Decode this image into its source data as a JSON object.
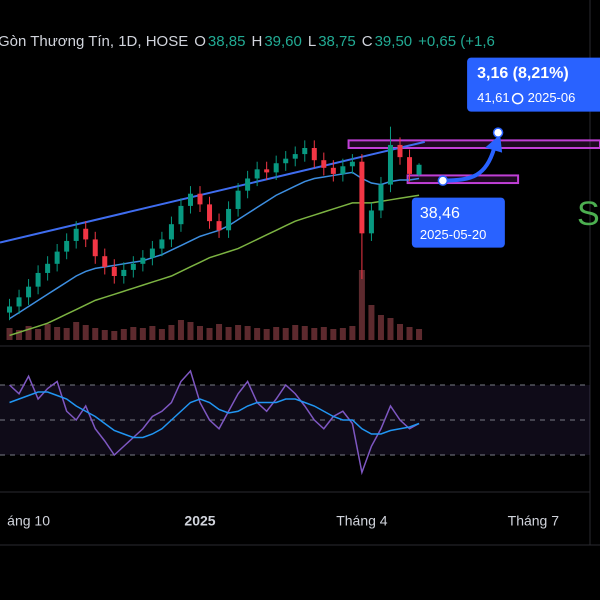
{
  "header": {
    "title": "Gòn Thương Tín, 1D, HOSE",
    "ohlc": [
      {
        "label": "O",
        "value": 38.85,
        "value_label": "38,85"
      },
      {
        "label": "H",
        "value": 39.6,
        "value_label": "39,60"
      },
      {
        "label": "L",
        "value": 38.75,
        "value_label": "38,75"
      },
      {
        "label": "C",
        "value": 39.5,
        "value_label": "39,50"
      }
    ],
    "change": "+0,65 (+1,6"
  },
  "side_text": "ST",
  "chart_data": [
    {
      "type": "candlestick",
      "up_color": "#089981",
      "down_color": "#f23645",
      "x": [
        1,
        2,
        3,
        4,
        5,
        6,
        7,
        8,
        9,
        10,
        11,
        12,
        13,
        14,
        15,
        16,
        17,
        18,
        19,
        20,
        21,
        22,
        23,
        24,
        25,
        26,
        27,
        28,
        29,
        30,
        31,
        32,
        33,
        34,
        35,
        36,
        37,
        38,
        39,
        40,
        41,
        42,
        43,
        44
      ],
      "open": [
        29.8,
        30.2,
        30.8,
        31.5,
        32.4,
        33.0,
        33.8,
        34.5,
        35.3,
        34.6,
        33.5,
        32.8,
        32.2,
        32.6,
        33.0,
        33.4,
        34.0,
        34.6,
        35.6,
        36.8,
        37.6,
        36.9,
        35.8,
        35.2,
        36.6,
        37.8,
        38.6,
        39.2,
        39.0,
        39.6,
        39.9,
        40.2,
        40.6,
        39.8,
        39.3,
        38.9,
        39.4,
        39.7,
        35.0,
        36.5,
        38.2,
        40.8,
        40.0,
        38.85
      ],
      "high": [
        30.7,
        31.3,
        32.0,
        32.9,
        33.5,
        34.3,
        35.0,
        35.8,
        35.8,
        35.1,
        34.0,
        33.3,
        33.1,
        33.5,
        33.9,
        34.5,
        35.1,
        36.1,
        37.3,
        38.1,
        38.1,
        37.4,
        36.3,
        37.1,
        38.3,
        39.1,
        39.7,
        39.7,
        40.1,
        40.4,
        40.7,
        41.1,
        41.1,
        40.3,
        39.8,
        39.9,
        40.2,
        40.2,
        37.0,
        38.7,
        42.0,
        41.3,
        40.5,
        39.6
      ],
      "low": [
        29.3,
        29.7,
        30.3,
        31.0,
        31.9,
        32.5,
        33.3,
        34.0,
        34.1,
        33.0,
        32.3,
        31.7,
        31.7,
        32.1,
        32.5,
        32.9,
        33.5,
        34.1,
        35.1,
        36.3,
        36.4,
        35.3,
        34.7,
        34.7,
        36.1,
        37.3,
        38.1,
        38.5,
        38.5,
        39.1,
        39.4,
        39.7,
        39.3,
        38.8,
        38.4,
        38.4,
        38.9,
        32.0,
        34.5,
        36.0,
        37.7,
        39.5,
        38.4,
        38.75
      ],
      "close": [
        30.2,
        30.8,
        31.5,
        32.4,
        33.0,
        33.8,
        34.5,
        35.3,
        34.6,
        33.5,
        32.8,
        32.2,
        32.6,
        33.0,
        33.4,
        34.0,
        34.6,
        35.6,
        36.8,
        37.6,
        36.9,
        35.8,
        35.2,
        36.6,
        37.8,
        38.6,
        39.2,
        39.0,
        39.6,
        39.9,
        40.2,
        40.6,
        39.8,
        39.3,
        38.9,
        39.4,
        39.7,
        35.0,
        36.5,
        38.2,
        40.8,
        40.0,
        38.9,
        39.5
      ],
      "volume": [
        12,
        10,
        14,
        11,
        16,
        13,
        12,
        18,
        15,
        12,
        10,
        9,
        11,
        13,
        12,
        14,
        11,
        15,
        20,
        18,
        14,
        12,
        16,
        13,
        15,
        14,
        12,
        11,
        13,
        12,
        15,
        14,
        12,
        13,
        11,
        12,
        14,
        70,
        35,
        25,
        22,
        16,
        13,
        11
      ],
      "volume_color": "#5d2a2e",
      "vlim": [
        0,
        100
      ],
      "series": [
        {
          "color": "#3d8ee0",
          "values": [
            29.4,
            29.8,
            30.2,
            30.6,
            31.0,
            31.4,
            31.8,
            32.2,
            32.5,
            32.7,
            32.8,
            32.9,
            33.0,
            33.1,
            33.2,
            33.4,
            33.6,
            33.9,
            34.2,
            34.5,
            34.8,
            35.0,
            35.2,
            35.5,
            35.9,
            36.3,
            36.7,
            37.1,
            37.5,
            37.8,
            38.1,
            38.4,
            38.6,
            38.7,
            38.8,
            38.9,
            39.0,
            38.6,
            38.3,
            38.2,
            38.4,
            38.5,
            38.5,
            38.6
          ]
        },
        {
          "color": "#7cb342",
          "values": [
            28.3,
            28.5,
            28.7,
            28.9,
            29.1,
            29.4,
            29.7,
            30.0,
            30.3,
            30.6,
            30.8,
            31.0,
            31.2,
            31.4,
            31.6,
            31.8,
            32.0,
            32.2,
            32.5,
            32.8,
            33.1,
            33.4,
            33.6,
            33.8,
            34.0,
            34.3,
            34.6,
            34.9,
            35.2,
            35.5,
            35.8,
            36.0,
            36.2,
            36.4,
            36.6,
            36.8,
            37.0,
            37.0,
            37.0,
            37.1,
            37.2,
            37.3,
            37.4,
            37.5
          ]
        }
      ],
      "trendline": {
        "color": "#3f6df0",
        "x": [
          0,
          44.6
        ],
        "values": [
          34.4,
          41.0
        ]
      },
      "zones": [
        {
          "color": "#c03fd6",
          "x": [
            36.6,
            63
          ],
          "values": [
            40.6,
            41.1
          ]
        },
        {
          "color": "#c03fd6",
          "x": [
            42.8,
            54.4
          ],
          "values": [
            38.3,
            38.8
          ]
        }
      ],
      "annotations": [
        {
          "text": "3,16 (8,21%)",
          "x": 52.3,
          "value": 41.61,
          "value_label": "41,61",
          "date": "2025-06"
        },
        {
          "x": 46.5,
          "value": 38.46,
          "value_label": "38,46",
          "date": "2025-05-20"
        }
      ],
      "xlim": [
        0,
        63
      ],
      "ylim": [
        28,
        49
      ],
      "xticks": [
        {
          "value": 3,
          "label": "áng 10"
        },
        {
          "value": 21,
          "label": "2025"
        },
        {
          "value": 38,
          "label": "Tháng 4"
        },
        {
          "value": 56,
          "label": "Tháng 7"
        }
      ]
    },
    {
      "type": "line",
      "x": [
        1,
        2,
        3,
        4,
        5,
        6,
        7,
        8,
        9,
        10,
        11,
        12,
        13,
        14,
        15,
        16,
        17,
        18,
        19,
        20,
        21,
        22,
        23,
        24,
        25,
        26,
        27,
        28,
        29,
        30,
        31,
        32,
        33,
        34,
        35,
        36,
        37,
        38,
        39,
        40,
        41,
        42,
        43,
        44
      ],
      "series": [
        {
          "color": "#7e57c2",
          "values": [
            70,
            65,
            75,
            62,
            68,
            72,
            55,
            50,
            58,
            45,
            38,
            30,
            35,
            40,
            45,
            52,
            55,
            60,
            72,
            78,
            60,
            50,
            45,
            55,
            65,
            72,
            60,
            55,
            62,
            70,
            65,
            58,
            50,
            45,
            52,
            55,
            48,
            20,
            35,
            45,
            58,
            50,
            45,
            48
          ]
        },
        {
          "color": "#2196f3",
          "values": [
            60,
            62,
            64,
            66,
            66,
            64,
            62,
            58,
            55,
            52,
            48,
            44,
            42,
            40,
            40,
            42,
            45,
            50,
            55,
            60,
            62,
            60,
            56,
            54,
            55,
            58,
            60,
            60,
            60,
            62,
            62,
            60,
            58,
            55,
            52,
            50,
            50,
            45,
            42,
            42,
            44,
            45,
            46,
            48
          ]
        }
      ],
      "xlim": [
        0,
        63
      ],
      "ylim": [
        10,
        90
      ],
      "yticks": [
        70,
        50,
        30
      ],
      "band": [
        30,
        70
      ]
    }
  ]
}
